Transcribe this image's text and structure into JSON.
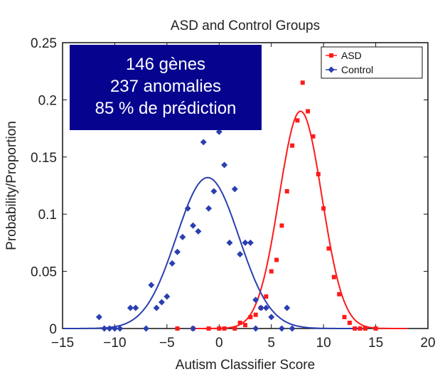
{
  "annotation": {
    "lines": [
      "146 gènes",
      "237 anomalies",
      "85 % de prédiction"
    ]
  },
  "chart_data": {
    "type": "scatter",
    "title": "ASD and Control Groups",
    "xlabel": "Autism Classifier Score",
    "ylabel": "Probability/Proportion",
    "xlim": [
      -15,
      20
    ],
    "ylim": [
      0,
      0.25
    ],
    "x_ticks": [
      -15,
      -10,
      -5,
      0,
      5,
      10,
      15,
      20
    ],
    "y_ticks": [
      0,
      0.05,
      0.1,
      0.15,
      0.2,
      0.25
    ],
    "x_tick_labels": [
      "−15",
      "−10",
      "−5",
      "0",
      "5",
      "10",
      "15",
      "20"
    ],
    "y_tick_labels": [
      "0",
      "0.05",
      "0.1",
      "0.15",
      "0.2",
      "0.25"
    ],
    "legend_position": "top-right",
    "grid": false,
    "series": [
      {
        "name": "ASD",
        "color": "#ff1a1a",
        "marker": "square",
        "points": [
          [
            -4,
            0
          ],
          [
            -2.5,
            0
          ],
          [
            -1,
            0
          ],
          [
            0,
            0
          ],
          [
            0.5,
            0
          ],
          [
            1.5,
            0
          ],
          [
            2,
            0.005
          ],
          [
            2.5,
            0.003
          ],
          [
            3,
            0.01
          ],
          [
            3.5,
            0.012
          ],
          [
            4,
            0.018
          ],
          [
            4.5,
            0.028
          ],
          [
            5,
            0.05
          ],
          [
            5.5,
            0.06
          ],
          [
            6,
            0.09
          ],
          [
            6.5,
            0.12
          ],
          [
            7,
            0.16
          ],
          [
            7.5,
            0.182
          ],
          [
            8,
            0.215
          ],
          [
            8.5,
            0.19
          ],
          [
            9,
            0.168
          ],
          [
            9.5,
            0.135
          ],
          [
            10,
            0.105
          ],
          [
            10.5,
            0.07
          ],
          [
            11,
            0.045
          ],
          [
            11.5,
            0.03
          ],
          [
            12,
            0.01
          ],
          [
            12.5,
            0.005
          ],
          [
            13,
            0
          ],
          [
            13.5,
            0
          ],
          [
            14,
            0
          ],
          [
            15,
            0
          ]
        ],
        "fit_curve": {
          "type": "normal",
          "mean": 7.8,
          "sd": 2.05,
          "peak": 0.19
        }
      },
      {
        "name": "Control",
        "color": "#2a3fb0",
        "marker": "diamond",
        "points": [
          [
            -11.5,
            0.01
          ],
          [
            -11,
            0
          ],
          [
            -10.5,
            0
          ],
          [
            -10,
            0
          ],
          [
            -9.5,
            0
          ],
          [
            -8.5,
            0.018
          ],
          [
            -8,
            0.018
          ],
          [
            -7,
            0
          ],
          [
            -6.5,
            0.038
          ],
          [
            -6,
            0.018
          ],
          [
            -5.5,
            0.023
          ],
          [
            -5,
            0.028
          ],
          [
            -4.5,
            0.057
          ],
          [
            -4,
            0.067
          ],
          [
            -3.5,
            0.08
          ],
          [
            -3,
            0.105
          ],
          [
            -2.5,
            0.09
          ],
          [
            -2,
            0.085
          ],
          [
            -1.5,
            0.163
          ],
          [
            -1,
            0.105
          ],
          [
            -0.5,
            0.12
          ],
          [
            0,
            0.172
          ],
          [
            0.5,
            0.143
          ],
          [
            1,
            0.075
          ],
          [
            1.5,
            0.122
          ],
          [
            2,
            0.065
          ],
          [
            2.5,
            0.075
          ],
          [
            3,
            0.075
          ],
          [
            3.5,
            0.025
          ],
          [
            4,
            0.018
          ],
          [
            4.5,
            0.018
          ],
          [
            5,
            0.01
          ],
          [
            6,
            0
          ],
          [
            6.5,
            0.018
          ],
          [
            7,
            0
          ],
          [
            3.5,
            0
          ],
          [
            -2.5,
            0
          ]
        ],
        "fit_curve": {
          "type": "normal",
          "mean": -1.1,
          "sd": 3.0,
          "peak": 0.132
        }
      }
    ]
  }
}
